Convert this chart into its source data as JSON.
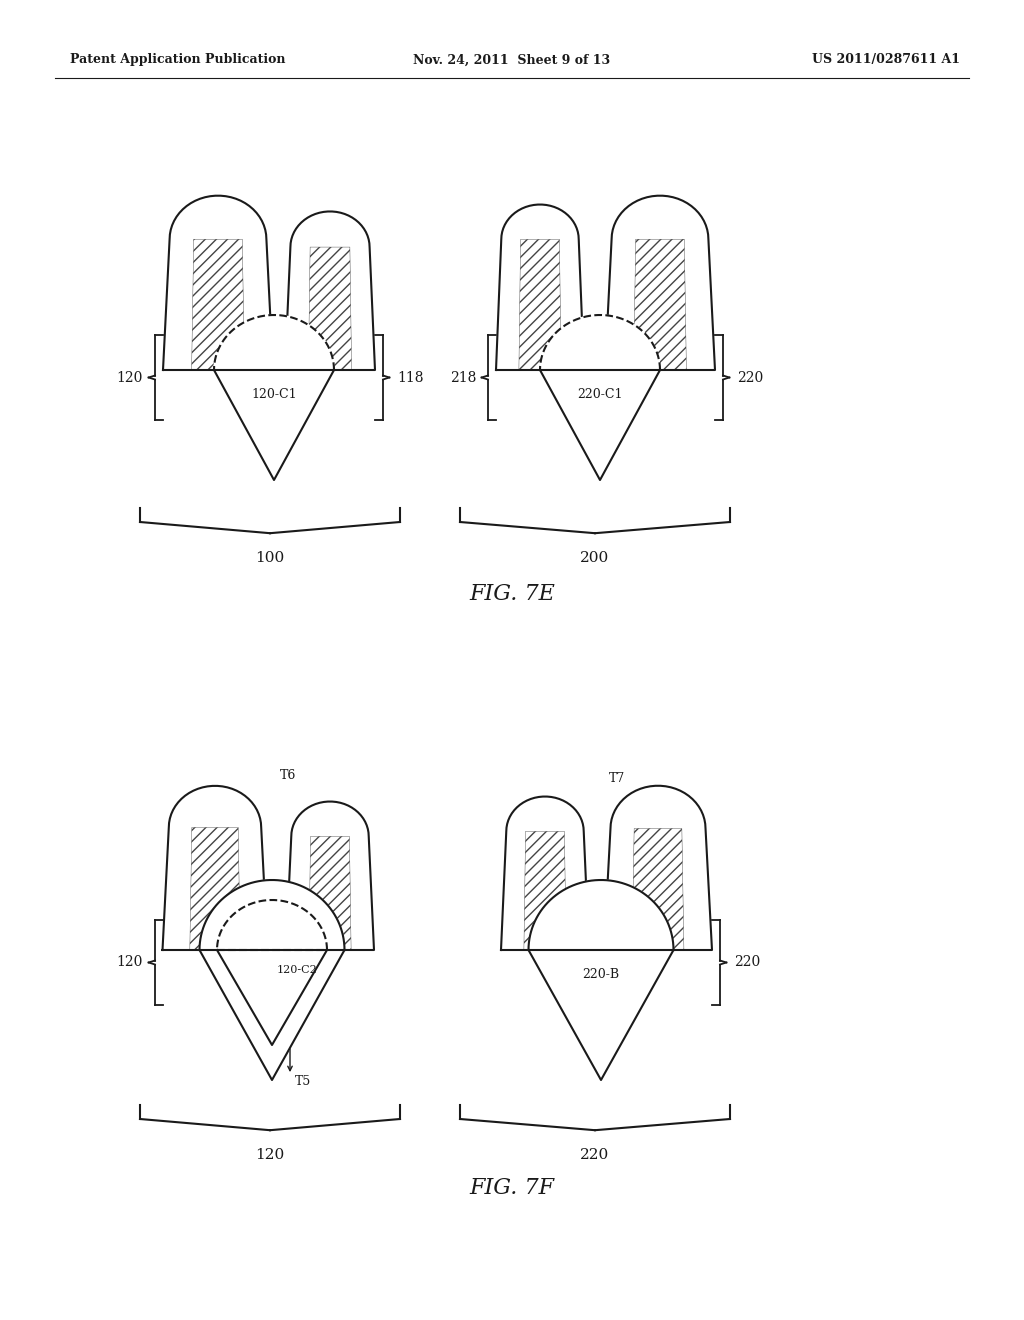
{
  "bg_color": "#ffffff",
  "header_left": "Patent Application Publication",
  "header_mid": "Nov. 24, 2011  Sheet 9 of 13",
  "header_right": "US 2011/0287611 A1",
  "fig7e_title": "FIG. 7E",
  "fig7f_title": "FIG. 7F",
  "line_color": "#1a1a1a",
  "hatch_color": "#444444",
  "gray_fill": "#d8d8d8"
}
